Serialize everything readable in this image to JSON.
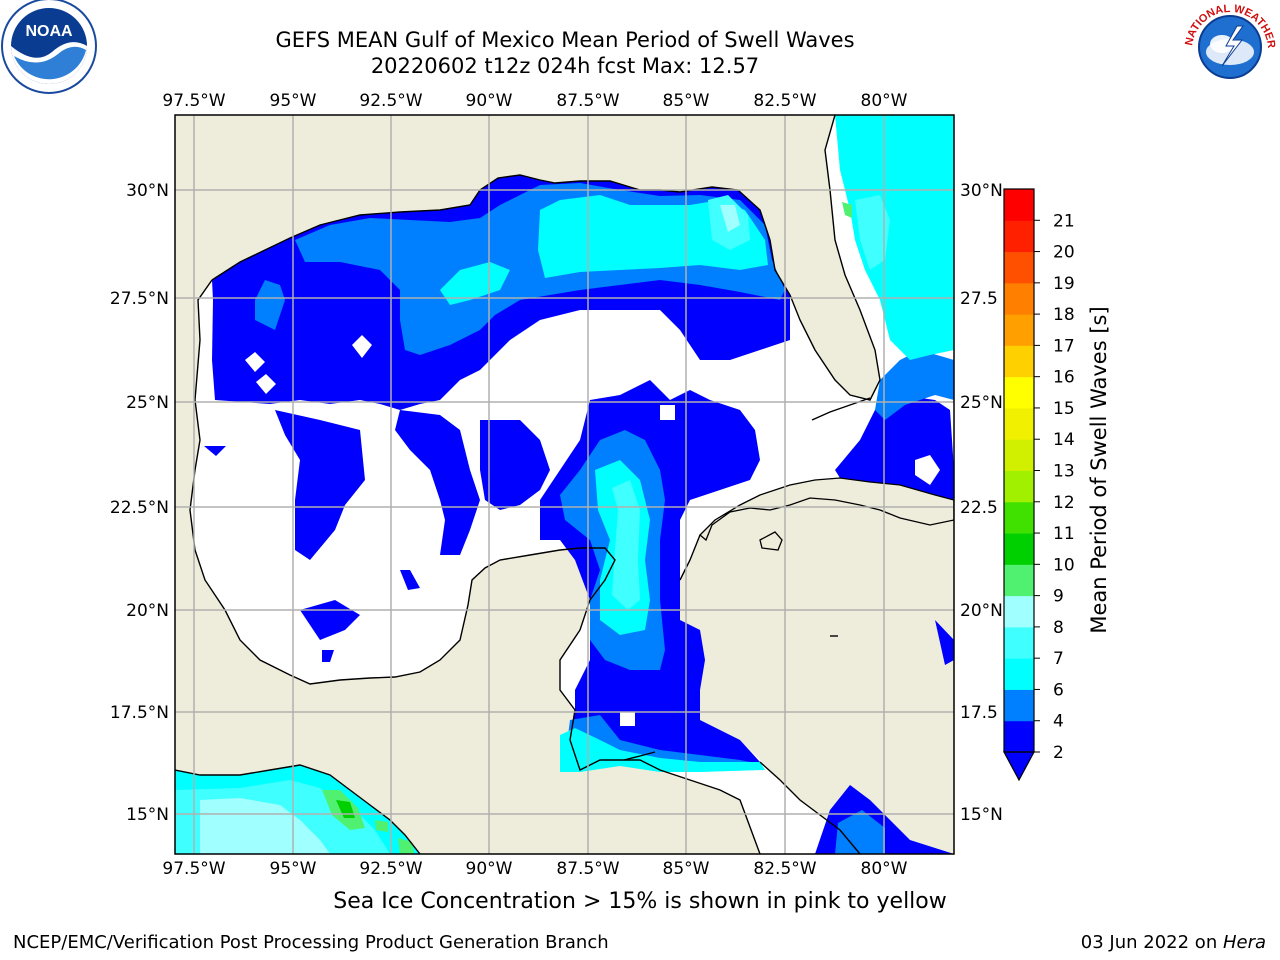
{
  "title": {
    "line1": "GEFS MEAN Gulf of Mexico Mean Period of Swell Waves",
    "line2": "20220602 t12z 024h fcst   Max: 12.57"
  },
  "logos": {
    "left": "noaa-logo",
    "left_text": "NOAA",
    "right": "national-weather-service-logo",
    "right_text": "NATIONAL WEATHER SERVICE"
  },
  "map": {
    "lon_ticks": [
      "97.5°W",
      "95°W",
      "92.5°W",
      "90°W",
      "87.5°W",
      "85°W",
      "82.5°W",
      "80°W"
    ],
    "lat_ticks": [
      "30°N",
      "27.5°N",
      "25°N",
      "22.5°N",
      "20°N",
      "17.5°N",
      "15°N"
    ],
    "lat_ticks_right": [
      "30°N",
      "27.5",
      "25°N",
      "22.5",
      "20°N",
      "17.5",
      "15°N"
    ],
    "colors": {
      "land": "#eeecdb",
      "ocean_no_data": "#ffffff",
      "grid": "#b0b0b0",
      "coast": "#000000"
    }
  },
  "colorbar": {
    "label": "Mean Period of Swell Waves [s]",
    "ticks": [
      "2",
      "4",
      "6",
      "7",
      "8",
      "9",
      "10",
      "11",
      "12",
      "13",
      "14",
      "15",
      "16",
      "17",
      "18",
      "19",
      "20",
      "21"
    ],
    "bins": [
      {
        "from": 2,
        "to": 4,
        "color": "#0000ff"
      },
      {
        "from": 4,
        "to": 6,
        "color": "#007fff"
      },
      {
        "from": 6,
        "to": 7,
        "color": "#00ffff"
      },
      {
        "from": 7,
        "to": 8,
        "color": "#40ffff"
      },
      {
        "from": 8,
        "to": 9,
        "color": "#a0ffff"
      },
      {
        "from": 9,
        "to": 10,
        "color": "#50f070"
      },
      {
        "from": 10,
        "to": 11,
        "color": "#00d000"
      },
      {
        "from": 11,
        "to": 12,
        "color": "#40e000"
      },
      {
        "from": 12,
        "to": 13,
        "color": "#a0f000"
      },
      {
        "from": 13,
        "to": 14,
        "color": "#d0f000"
      },
      {
        "from": 14,
        "to": 15,
        "color": "#f0f000"
      },
      {
        "from": 15,
        "to": 16,
        "color": "#ffff00"
      },
      {
        "from": 16,
        "to": 17,
        "color": "#ffd000"
      },
      {
        "from": 17,
        "to": 18,
        "color": "#ffa000"
      },
      {
        "from": 18,
        "to": 19,
        "color": "#ff8000"
      },
      {
        "from": 19,
        "to": 20,
        "color": "#ff5000"
      },
      {
        "from": 20,
        "to": 21,
        "color": "#ff2000"
      },
      {
        "from": 21,
        "to": 22,
        "color": "#ff0000"
      }
    ],
    "under_color": "#0000ff"
  },
  "caption": "Sea Ice Concentration > 15% is shown in pink to yellow",
  "footer": {
    "left": "NCEP/EMC/Verification Post Processing Product Generation Branch",
    "right_date": "03 Jun 2022 on ",
    "right_host": "Hera"
  }
}
